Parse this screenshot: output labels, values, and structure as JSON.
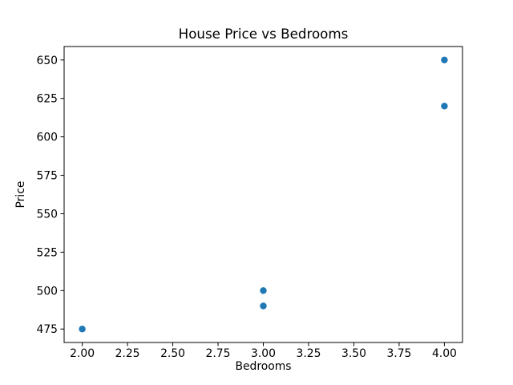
{
  "chart_data": {
    "type": "scatter",
    "title": "House Price vs Bedrooms",
    "xlabel": "Bedrooms",
    "ylabel": "Price",
    "x": [
      2,
      3,
      3,
      4,
      4
    ],
    "y": [
      475,
      500,
      490,
      650,
      620
    ],
    "points": [
      {
        "bedrooms": 2,
        "price": 475
      },
      {
        "bedrooms": 3,
        "price": 500
      },
      {
        "bedrooms": 3,
        "price": 490
      },
      {
        "bedrooms": 4,
        "price": 650
      },
      {
        "bedrooms": 4,
        "price": 620
      }
    ],
    "xlim": [
      1.9,
      4.1
    ],
    "ylim": [
      466.25,
      658.75
    ],
    "xticks": [
      2.0,
      2.25,
      2.5,
      2.75,
      3.0,
      3.25,
      3.5,
      3.75,
      4.0
    ],
    "xtick_labels": [
      "2.00",
      "2.25",
      "2.50",
      "2.75",
      "3.00",
      "3.25",
      "3.50",
      "3.75",
      "4.00"
    ],
    "yticks": [
      475,
      500,
      525,
      550,
      575,
      600,
      625,
      650
    ],
    "ytick_labels": [
      "475",
      "500",
      "525",
      "550",
      "575",
      "600",
      "625",
      "650"
    ],
    "marker_color": "#1f77b4",
    "axis_color": "#000000",
    "grid": false,
    "legend": null
  }
}
